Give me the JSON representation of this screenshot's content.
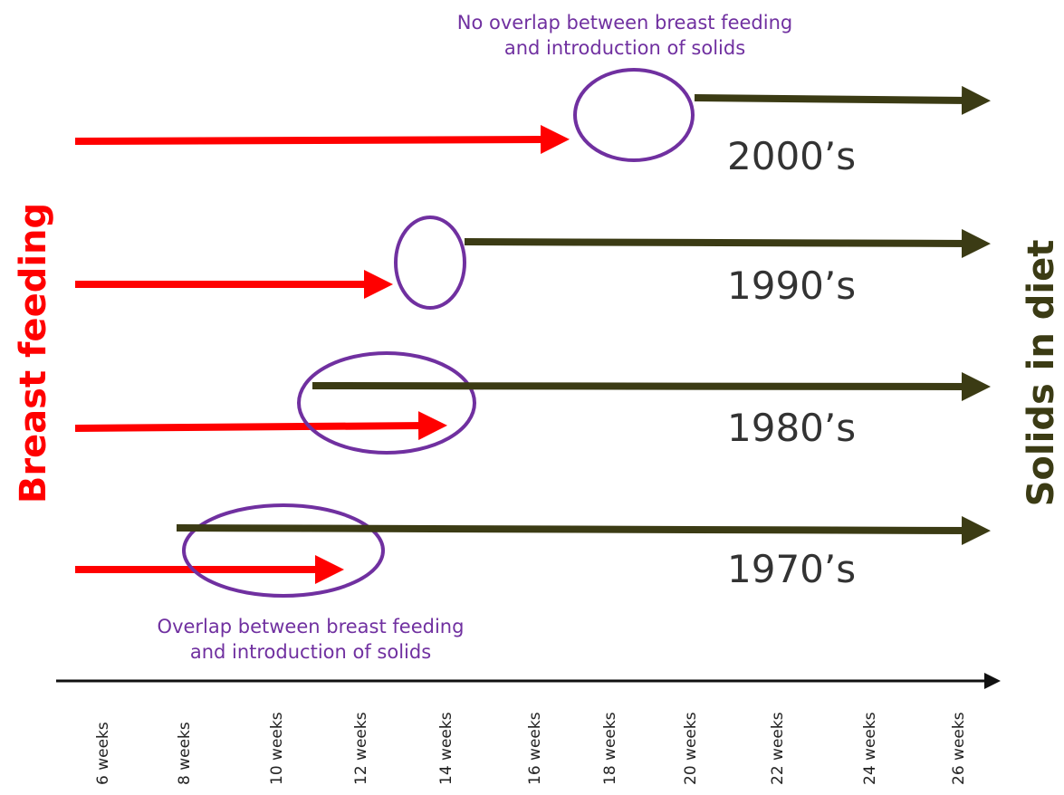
{
  "annotations": {
    "top": [
      "No overlap between breast feeding",
      "and introduction of solids"
    ],
    "bottom": [
      "Overlap between breast feeding",
      "and introduction of solids"
    ]
  },
  "decades": [
    "2000’s",
    "1990’s",
    "1980’s",
    "1970’s"
  ],
  "side_labels": {
    "left": "Breast feeding",
    "right": "Solids in diet"
  },
  "axis": {
    "ticks": [
      "6 weeks",
      "8 weeks",
      "10 weeks",
      "12 weeks",
      "14 weeks",
      "16 weeks",
      "18 weeks",
      "20 weeks",
      "22 weeks",
      "24 weeks",
      "26 weeks"
    ]
  }
}
